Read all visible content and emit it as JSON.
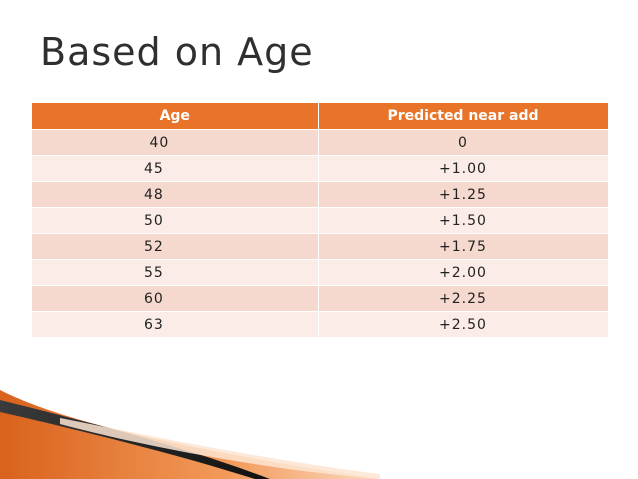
{
  "slide": {
    "title": "Based on Age"
  },
  "table": {
    "headers": {
      "age": "Age",
      "near_add": "Predicted near add"
    },
    "rows": [
      {
        "age": " 40",
        "near_add": "0"
      },
      {
        "age": "45",
        "near_add": "+1.00"
      },
      {
        "age": "48",
        "near_add": "+1.25"
      },
      {
        "age": "50",
        "near_add": "+1.50"
      },
      {
        "age": "52",
        "near_add": "+1.75"
      },
      {
        "age": "55",
        "near_add": "+2.00"
      },
      {
        "age": "60",
        "near_add": "+2.25"
      },
      {
        "age": "63",
        "near_add": "+2.50"
      }
    ]
  },
  "colors": {
    "header_bg": "#e8742a",
    "row_odd_bg": "#f6d9ce",
    "row_even_bg": "#fbece8",
    "title_text": "#2f2f2f",
    "decoration_dark": "#1f1f1f",
    "decoration_orange": "#e8742a"
  }
}
